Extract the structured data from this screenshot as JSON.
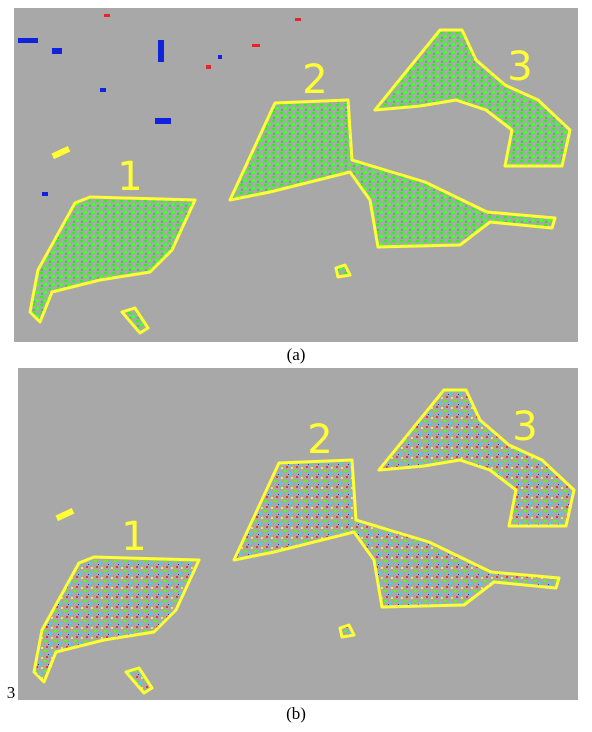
{
  "panel_a": {
    "labels": [
      "1",
      "2",
      "3"
    ],
    "caption": "(a)"
  },
  "panel_b": {
    "labels": [
      "1",
      "2",
      "3"
    ],
    "caption": "(b)",
    "side_note": "3"
  }
}
